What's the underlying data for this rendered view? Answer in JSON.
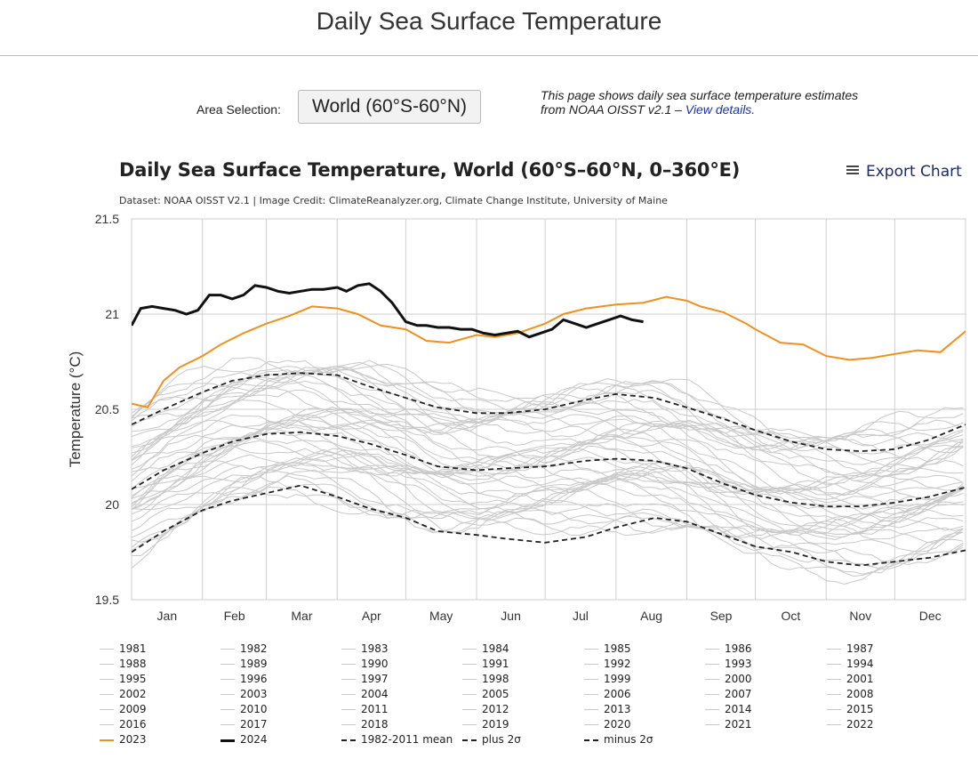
{
  "page": {
    "title": "Daily Sea Surface Temperature",
    "area_label": "Area Selection:",
    "area_value": "World (60°S-60°N)",
    "info_text": "This page shows daily sea surface temperature estimates from NOAA OISST v2.1 – ",
    "info_link": "View details.",
    "export_label": "Export Chart"
  },
  "chart_data": {
    "type": "line",
    "title": "Daily Sea Surface Temperature, World (60°S–60°N, 0–360°E)",
    "subtitle": "Dataset: NOAA OISST V2.1 | Image Credit: ClimateReanalyzer.org, Climate Change Institute, University of Maine",
    "ylabel": "Temperature (°C)",
    "xlabel": "",
    "ylim": [
      19.5,
      21.5
    ],
    "yticks": [
      19.5,
      20,
      20.5,
      21,
      21.5
    ],
    "ytick_labels": [
      "19.5",
      "20",
      "20.5",
      "21",
      "21.5"
    ],
    "xlim": [
      1,
      366
    ],
    "month_boundaries": [
      1,
      32,
      60,
      91,
      121,
      152,
      182,
      213,
      244,
      274,
      305,
      335,
      366
    ],
    "months": [
      "Jan",
      "Feb",
      "Mar",
      "Apr",
      "May",
      "Jun",
      "Jul",
      "Aug",
      "Sep",
      "Oct",
      "Nov",
      "Dec"
    ],
    "grid": true,
    "legend_position": "bottom",
    "colors": {
      "other_years": "#c8c8c8",
      "y2023": "#f0901e",
      "y2024": "#111111",
      "mean": "#222222",
      "plot_border": "#aaaaaa",
      "grid": "#cfcfcf"
    },
    "other_years": [
      "1981",
      "1982",
      "1983",
      "1984",
      "1985",
      "1986",
      "1987",
      "1988",
      "1989",
      "1990",
      "1991",
      "1992",
      "1993",
      "1994",
      "1995",
      "1996",
      "1997",
      "1998",
      "1999",
      "2000",
      "2001",
      "2002",
      "2003",
      "2004",
      "2005",
      "2006",
      "2007",
      "2008",
      "2009",
      "2010",
      "2011",
      "2012",
      "2013",
      "2014",
      "2015",
      "2016",
      "2017",
      "2018",
      "2019",
      "2020",
      "2021",
      "2022"
    ],
    "series": [
      {
        "name": "2023",
        "style": "orange",
        "x": [
          1,
          8,
          15,
          22,
          32,
          40,
          50,
          60,
          70,
          80,
          91,
          100,
          110,
          121,
          130,
          140,
          152,
          160,
          170,
          182,
          190,
          200,
          213,
          225,
          235,
          244,
          250,
          260,
          270,
          274,
          285,
          295,
          305,
          315,
          325,
          335,
          345,
          355,
          366
        ],
        "values": [
          20.53,
          20.51,
          20.65,
          20.72,
          20.78,
          20.84,
          20.9,
          20.95,
          20.99,
          21.04,
          21.03,
          21.0,
          20.94,
          20.92,
          20.86,
          20.85,
          20.89,
          20.88,
          20.9,
          20.95,
          21.0,
          21.03,
          21.05,
          21.06,
          21.09,
          21.07,
          21.04,
          21.01,
          20.95,
          20.92,
          20.85,
          20.84,
          20.78,
          20.76,
          20.77,
          20.79,
          20.81,
          20.8,
          20.91
        ]
      },
      {
        "name": "2024",
        "style": "black",
        "x": [
          1,
          5,
          10,
          15,
          20,
          25,
          30,
          35,
          40,
          45,
          50,
          55,
          60,
          65,
          70,
          75,
          80,
          85,
          91,
          95,
          100,
          105,
          110,
          115,
          121,
          126,
          130,
          135,
          140,
          145,
          150,
          155,
          160,
          165,
          170,
          175,
          180,
          185,
          190,
          195,
          200,
          205,
          210,
          215,
          220,
          225
        ],
        "values": [
          20.94,
          21.03,
          21.04,
          21.03,
          21.02,
          21.0,
          21.02,
          21.1,
          21.1,
          21.08,
          21.1,
          21.15,
          21.14,
          21.12,
          21.11,
          21.12,
          21.13,
          21.13,
          21.14,
          21.12,
          21.15,
          21.16,
          21.12,
          21.06,
          20.96,
          20.94,
          20.94,
          20.93,
          20.93,
          20.92,
          20.92,
          20.9,
          20.89,
          20.9,
          20.91,
          20.88,
          20.9,
          20.92,
          20.97,
          20.95,
          20.93,
          20.95,
          20.97,
          20.99,
          20.97,
          20.96
        ]
      },
      {
        "name": "1982-2011 mean",
        "style": "dashed",
        "x": [
          1,
          15,
          32,
          45,
          60,
          75,
          91,
          105,
          121,
          135,
          152,
          165,
          182,
          200,
          213,
          230,
          244,
          260,
          274,
          290,
          305,
          320,
          335,
          350,
          366
        ],
        "values": [
          20.08,
          20.18,
          20.27,
          20.33,
          20.37,
          20.38,
          20.36,
          20.32,
          20.26,
          20.2,
          20.18,
          20.19,
          20.2,
          20.23,
          20.24,
          20.23,
          20.19,
          20.11,
          20.05,
          20.01,
          19.99,
          19.99,
          20.01,
          20.04,
          20.09
        ]
      },
      {
        "name": "plus 2σ",
        "style": "dashed",
        "x": [
          1,
          15,
          32,
          45,
          60,
          75,
          91,
          105,
          121,
          135,
          152,
          165,
          182,
          200,
          213,
          230,
          244,
          260,
          274,
          290,
          305,
          320,
          335,
          350,
          366
        ],
        "values": [
          20.42,
          20.5,
          20.59,
          20.65,
          20.68,
          20.69,
          20.68,
          20.62,
          20.56,
          20.51,
          20.48,
          20.48,
          20.5,
          20.55,
          20.58,
          20.56,
          20.51,
          20.45,
          20.39,
          20.33,
          20.29,
          20.28,
          20.29,
          20.34,
          20.42
        ]
      },
      {
        "name": "minus 2σ",
        "style": "dashed",
        "x": [
          1,
          15,
          32,
          45,
          60,
          75,
          91,
          105,
          121,
          135,
          152,
          165,
          182,
          200,
          213,
          230,
          244,
          260,
          274,
          290,
          305,
          320,
          335,
          350,
          366
        ],
        "values": [
          19.75,
          19.86,
          19.97,
          20.02,
          20.06,
          20.1,
          20.04,
          19.98,
          19.93,
          19.86,
          19.84,
          19.82,
          19.8,
          19.83,
          19.88,
          19.93,
          19.91,
          19.84,
          19.78,
          19.75,
          19.7,
          19.68,
          19.7,
          19.72,
          19.76
        ]
      }
    ],
    "legend": [
      "1981",
      "1982",
      "1983",
      "1984",
      "1985",
      "1986",
      "1987",
      "1988",
      "1989",
      "1990",
      "1991",
      "1992",
      "1993",
      "1994",
      "1995",
      "1996",
      "1997",
      "1998",
      "1999",
      "2000",
      "2001",
      "2002",
      "2003",
      "2004",
      "2005",
      "2006",
      "2007",
      "2008",
      "2009",
      "2010",
      "2011",
      "2012",
      "2013",
      "2014",
      "2015",
      "2016",
      "2017",
      "2018",
      "2019",
      "2020",
      "2021",
      "2022",
      "2023",
      "2024",
      "1982-2011 mean",
      "plus 2σ",
      "minus 2σ"
    ]
  }
}
